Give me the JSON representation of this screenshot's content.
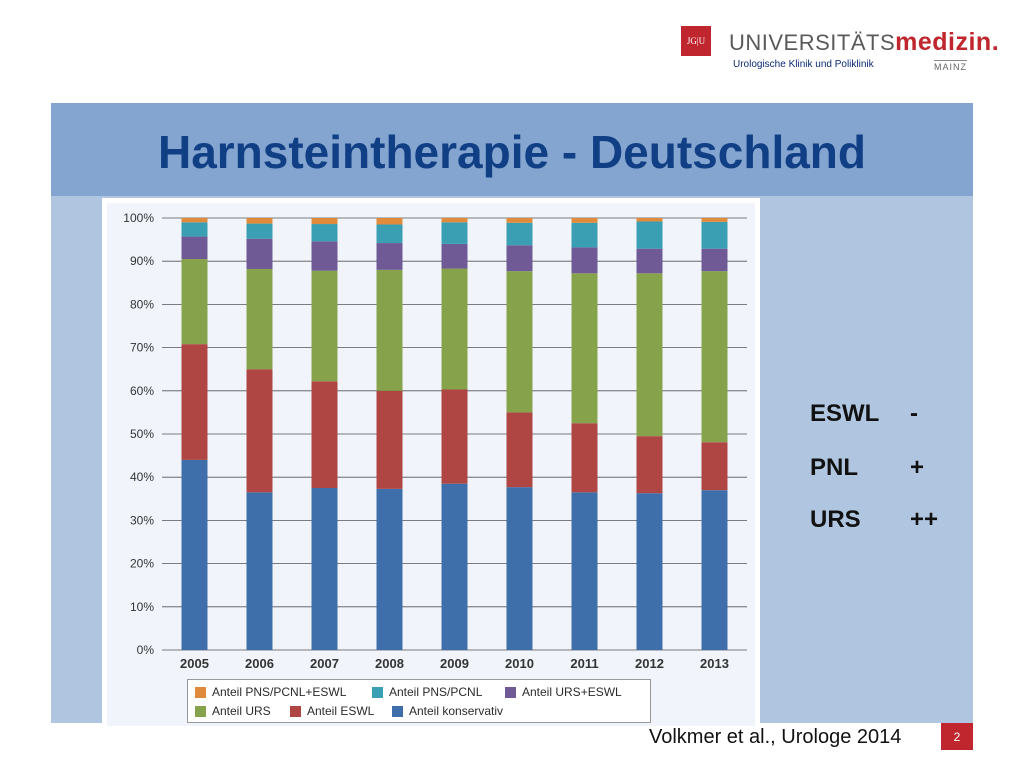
{
  "logo": {
    "badge": "JG|U",
    "main_prefix": "UNIVERSITÄTS",
    "main_suffix": "medizin.",
    "subtitle": "Urologische Klinik und Poliklinik",
    "city": "MAINZ"
  },
  "slide": {
    "title": "Harnsteintherapie - Deutschland",
    "source": "Volkmer et al., Urologe 2014",
    "page_number": "2"
  },
  "side_notes": [
    {
      "label": "ESWL",
      "sign": "-"
    },
    {
      "label": "PNL",
      "sign": "+"
    },
    {
      "label": "URS",
      "sign": "++"
    }
  ],
  "chart_data": {
    "type": "bar",
    "stacked": true,
    "categories": [
      "2005",
      "2006",
      "2007",
      "2008",
      "2009",
      "2010",
      "2011",
      "2012",
      "2013"
    ],
    "ylim": [
      0,
      100
    ],
    "yticks": [
      "0%",
      "10%",
      "20%",
      "30%",
      "40%",
      "50%",
      "60%",
      "70%",
      "80%",
      "90%",
      "100%"
    ],
    "series": [
      {
        "name": "Anteil konservativ",
        "color": "#3f6faa",
        "values": [
          44,
          36.5,
          37.5,
          37.3,
          38.5,
          37.7,
          36.5,
          36.3,
          37
        ]
      },
      {
        "name": "Anteil ESWL",
        "color": "#b04644",
        "values": [
          26.8,
          28.5,
          24.7,
          22.7,
          21.8,
          17.3,
          16,
          13.2,
          11.1
        ]
      },
      {
        "name": "Anteil URS",
        "color": "#86a34c",
        "values": [
          19.7,
          23.2,
          25.6,
          28,
          28,
          32.7,
          34.7,
          37.7,
          39.6
        ]
      },
      {
        "name": "Anteil URS+ESWL",
        "color": "#6f5a96",
        "values": [
          5.2,
          7,
          6.8,
          6.2,
          5.7,
          6,
          6,
          5.7,
          5.2
        ]
      },
      {
        "name": "Anteil PNS/PCNL",
        "color": "#3b9fb4",
        "values": [
          3.3,
          3.5,
          4,
          4.3,
          5,
          5.2,
          5.7,
          6.3,
          6.2
        ]
      },
      {
        "name": "Anteil PNS/PCNL+ESWL",
        "color": "#e08a3c",
        "values": [
          1,
          1.3,
          1.4,
          1.5,
          1,
          1.1,
          1.1,
          0.8,
          0.9
        ]
      }
    ],
    "legend_order": [
      "Anteil PNS/PCNL+ESWL",
      "Anteil PNS/PCNL",
      "Anteil URS+ESWL",
      "Anteil URS",
      "Anteil ESWL",
      "Anteil konservativ"
    ],
    "legend_position": "bottom",
    "grid": true
  }
}
